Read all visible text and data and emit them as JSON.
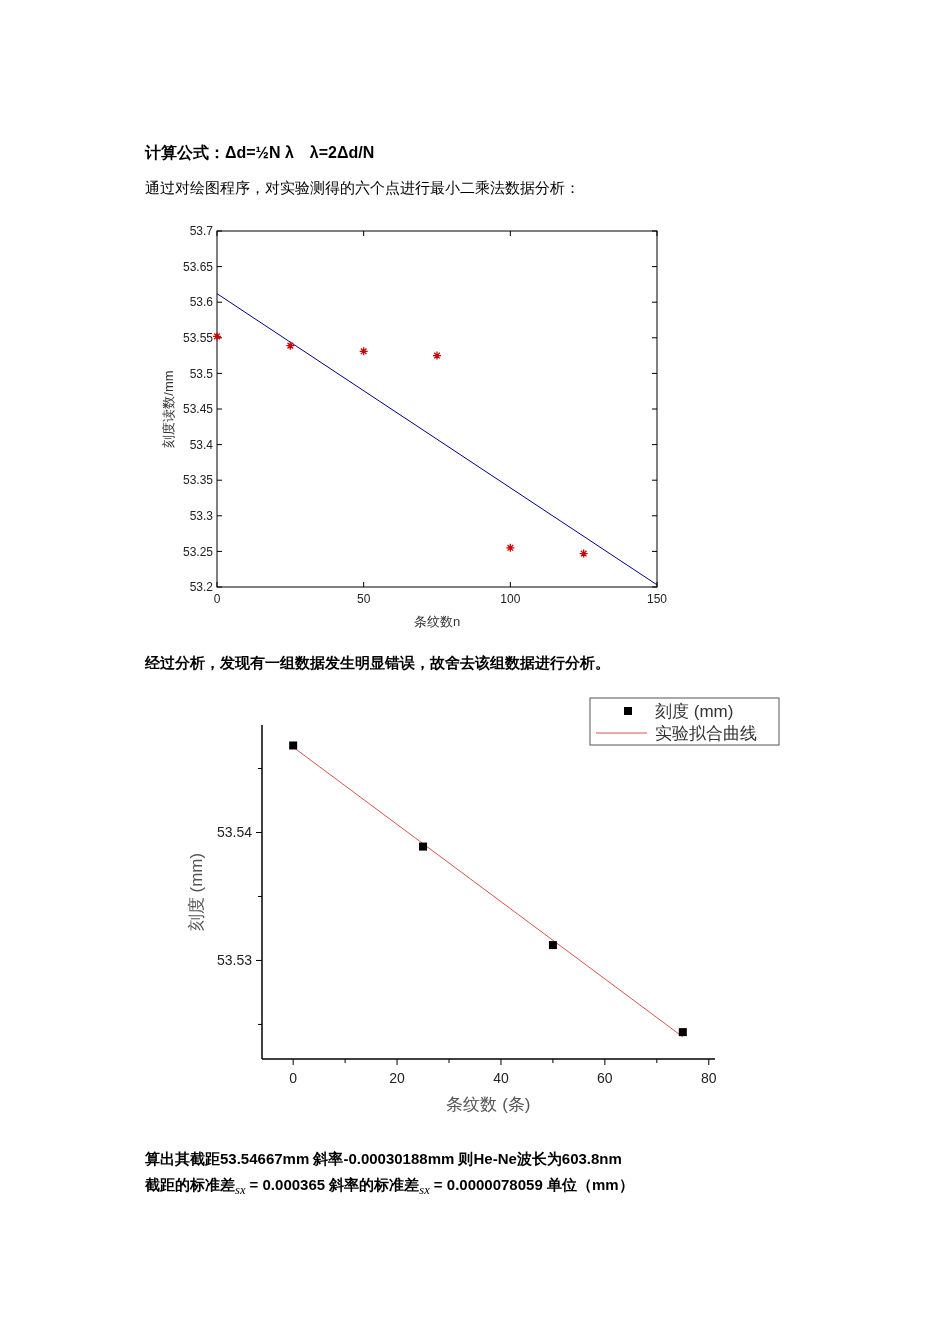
{
  "chart_data": [
    {
      "type": "other",
      "annotations": [
        "计算公式：Δd=½N λ　λ=2Δd/N",
        "通过对绘图程序，对实验测得的六个点进行最小二乘法数据分析："
      ]
    },
    {
      "type": "scatter",
      "xlabel": "条纹数n",
      "ylabel": "刻度读数/mm",
      "xlim": [
        0,
        150
      ],
      "ylim": [
        53.2,
        53.7
      ],
      "xticks": [
        0,
        50,
        100,
        150
      ],
      "yticks": [
        53.2,
        53.25,
        53.3,
        53.35,
        53.4,
        53.45,
        53.5,
        53.55,
        53.6,
        53.65,
        53.7
      ],
      "series": [
        {
          "type": "scatter",
          "marker": "cross",
          "color": "#cc0000",
          "x": [
            0,
            25,
            50,
            75,
            100,
            125
          ],
          "values": [
            53.552,
            53.539,
            53.531,
            53.525,
            53.255,
            53.247
          ]
        },
        {
          "type": "line",
          "color": "#00008b",
          "x": [
            0,
            150
          ],
          "values": [
            53.612,
            53.203
          ]
        }
      ]
    },
    {
      "type": "other",
      "annotations": [
        "经过分析，发现有一组数据发生明显错误，故舍去该组数据进行分析。"
      ]
    },
    {
      "type": "scatter",
      "xlabel": "条纹数 (条)",
      "ylabel": "刻度 (mm)",
      "legend": "top right",
      "xlim": [
        -6,
        81.2
      ],
      "ylim": [
        53.5223,
        53.5484
      ],
      "xticks": [
        0,
        {
          "value": 10,
          "label": null
        },
        20,
        {
          "value": 30,
          "label": null
        },
        40,
        {
          "value": 50,
          "label": null
        },
        60,
        {
          "value": 70,
          "label": null
        },
        80
      ],
      "yticks": [
        {
          "value": 53.525,
          "label": null
        },
        53.53,
        {
          "value": 53.535,
          "label": null
        },
        53.54,
        {
          "value": 53.545,
          "label": null
        }
      ],
      "series": [
        {
          "type": "scatter",
          "name": "刻度 (mm)",
          "marker": "square",
          "color": "#000000",
          "x": [
            0,
            25,
            50,
            75
          ],
          "values": [
            53.5468,
            53.5389,
            53.5312,
            53.5244
          ]
        },
        {
          "type": "line",
          "name": "实验拟合曲线",
          "color": "#d9534f",
          "x": [
            0,
            75
          ],
          "values": [
            53.54667,
            53.52403
          ]
        }
      ]
    },
    {
      "type": "other",
      "annotations": [
        "算出其截距53.54667mm   斜率-0.00030188mm    则He-Ne波长为603.8nm",
        "截距的标准差$_{s}$$_{x}$ = 0.000365   斜率的标准差$_{s}$$_{x}$ = 0.0000078059  单位（mm）"
      ]
    }
  ]
}
